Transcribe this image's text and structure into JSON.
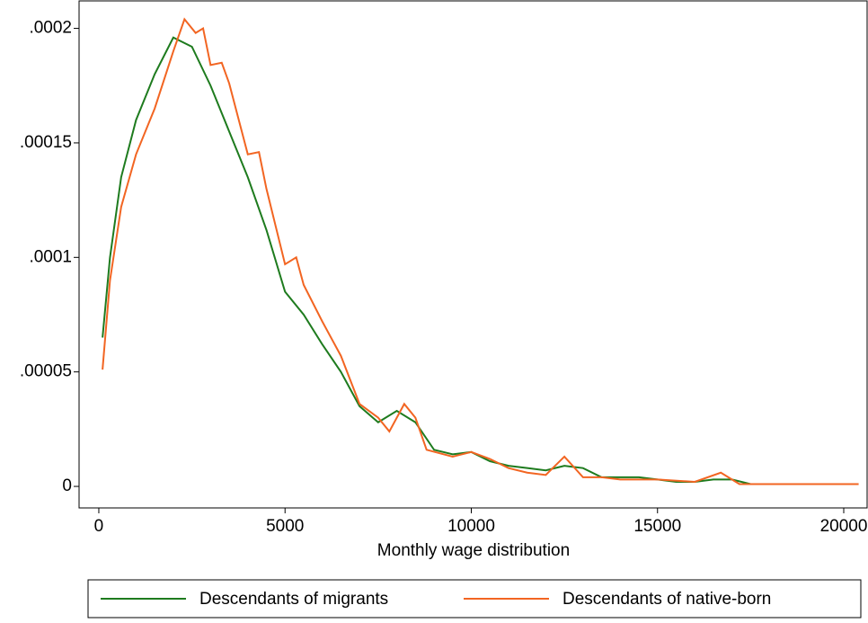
{
  "chart_data": {
    "type": "line",
    "xlabel": "Monthly wage distribution",
    "xlim": [
      -530,
      20627
    ],
    "xticks": [
      0,
      5000,
      10000,
      15000,
      20000
    ],
    "ylim": [
      -9.4e-06,
      0.000212
    ],
    "yticks": [
      0,
      {
        "value": 5e-05,
        "label": ".00005"
      },
      {
        "value": 0.0001,
        "label": ".0001"
      },
      {
        "value": 0.00015,
        "label": ".00015"
      },
      {
        "value": 0.0002,
        "label": ".0002"
      }
    ],
    "grid": false,
    "legend": "bottom",
    "series": [
      {
        "name": "Descendants of migrants",
        "color": "#1e7b1e",
        "x": [
          100,
          300,
          600,
          1000,
          1500,
          2000,
          2500,
          3000,
          3500,
          4000,
          4500,
          5000,
          5500,
          6000,
          6500,
          7000,
          7500,
          8000,
          8500,
          9000,
          9500,
          10000,
          10500,
          11000,
          11500,
          12000,
          12500,
          13000,
          13500,
          14000,
          14500,
          15000,
          15500,
          16000,
          16500,
          17000,
          17500,
          18000,
          18900
        ],
        "values": [
          6.5e-05,
          0.0001,
          0.000135,
          0.00016,
          0.00018,
          0.000196,
          0.000192,
          0.000175,
          0.000155,
          0.000135,
          0.000112,
          8.5e-05,
          7.5e-05,
          6.2e-05,
          5e-05,
          3.5e-05,
          2.8e-05,
          3.3e-05,
          2.8e-05,
          1.6e-05,
          1.4e-05,
          1.5e-05,
          1.1e-05,
          9e-06,
          8e-06,
          7e-06,
          9e-06,
          8e-06,
          4e-06,
          4e-06,
          4e-06,
          3e-06,
          2e-06,
          2e-06,
          3e-06,
          3e-06,
          1e-06,
          1e-06,
          1e-06
        ]
      },
      {
        "name": "Descendants of native-born",
        "color": "#f26522",
        "x": [
          100,
          300,
          600,
          1000,
          1500,
          2000,
          2300,
          2600,
          2800,
          3000,
          3300,
          3500,
          4000,
          4300,
          4500,
          5000,
          5300,
          5500,
          6000,
          6500,
          7000,
          7500,
          7800,
          8200,
          8500,
          8800,
          9500,
          10000,
          10500,
          11000,
          11500,
          12000,
          12500,
          13000,
          13500,
          14000,
          15000,
          16000,
          16700,
          17200,
          18000,
          19000,
          20400
        ],
        "values": [
          5.1e-05,
          9e-05,
          0.000122,
          0.000145,
          0.000165,
          0.00019,
          0.000204,
          0.000198,
          0.0002,
          0.000184,
          0.000185,
          0.000176,
          0.000145,
          0.000146,
          0.00013,
          9.7e-05,
          0.0001,
          8.8e-05,
          7.2e-05,
          5.7e-05,
          3.6e-05,
          3e-05,
          2.4e-05,
          3.6e-05,
          3e-05,
          1.6e-05,
          1.3e-05,
          1.5e-05,
          1.2e-05,
          8e-06,
          6e-06,
          5e-06,
          1.3e-05,
          4e-06,
          4e-06,
          3e-06,
          3e-06,
          2e-06,
          6e-06,
          1e-06,
          1e-06,
          1e-06,
          1e-06
        ]
      }
    ]
  }
}
